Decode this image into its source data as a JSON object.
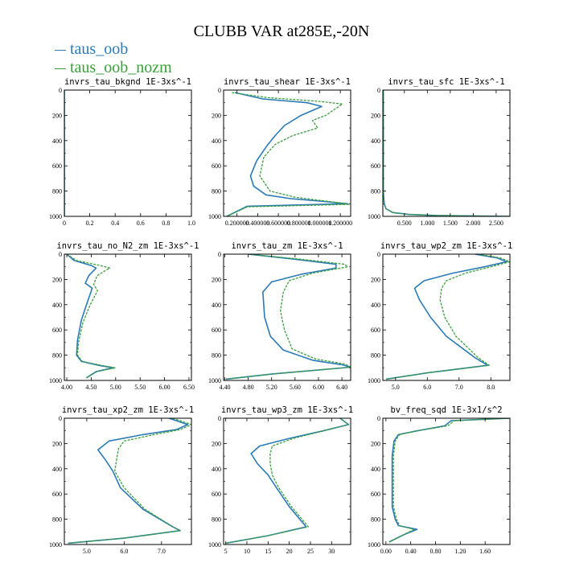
{
  "title": "CLUBB VAR at285E,-20N",
  "colors": {
    "series_1": "#2a7ab8",
    "series_2": "#3aa03a"
  },
  "legend": [
    {
      "label": "taus_oob",
      "color": "#2a7ab8"
    },
    {
      "label": "taus_oob_nozm",
      "color": "#3aa03a"
    }
  ],
  "chart_data": [
    {
      "type": "line",
      "title": "invrs_tau_bkgnd   1E-3xs^-1",
      "xlim": [
        0,
        1
      ],
      "ylim": [
        1000,
        0
      ],
      "xticks": [
        0,
        0.2,
        0.4,
        0.6,
        0.8,
        1.0
      ],
      "xtick_labels": [
        "0",
        "0.2",
        "0.4",
        "0.6",
        "0.8",
        "1.0"
      ],
      "yticks": [
        0,
        200,
        400,
        600,
        800,
        1000
      ],
      "series": [
        {
          "x": [
            0,
            0
          ],
          "y": [
            0,
            1000
          ]
        },
        {
          "x": [
            0,
            0
          ],
          "y": [
            0,
            1000
          ]
        }
      ]
    },
    {
      "type": "line",
      "title": "invrs_tau_shear   1E-3xs^-1",
      "xlim": [
        0.07,
        1.3
      ],
      "ylim": [
        1000,
        0
      ],
      "xticks": [
        0.2,
        0.4,
        0.6,
        0.8,
        1.0,
        1.2
      ],
      "xtick_labels": [
        "0.200000",
        "0.400000",
        "0.600000",
        "0.800000",
        "1.000000",
        "1.200000"
      ],
      "yticks": [
        0,
        200,
        400,
        600,
        800,
        1000
      ],
      "series": [
        {
          "x": [
            0.18,
            0.45,
            0.88,
            1.02,
            0.82,
            0.66,
            0.57,
            0.49,
            0.39,
            0.33,
            0.36,
            0.48,
            0.72,
            1.02,
            1.27,
            0.3,
            0.1
          ],
          "y": [
            20,
            70,
            100,
            130,
            200,
            280,
            360,
            440,
            560,
            680,
            760,
            830,
            860,
            880,
            900,
            920,
            1000
          ]
        },
        {
          "x": [
            0.15,
            0.5,
            1.0,
            1.22,
            1.06,
            0.93,
            0.98,
            0.74,
            0.57,
            0.46,
            0.42,
            0.52,
            0.77,
            1.07,
            1.29,
            0.3,
            0.1
          ],
          "y": [
            20,
            60,
            90,
            110,
            200,
            240,
            300,
            360,
            430,
            530,
            680,
            800,
            850,
            880,
            905,
            925,
            1000
          ]
        }
      ]
    },
    {
      "type": "line",
      "title": "invrs_tau_sfc   1E-3xs^-1",
      "xlim": [
        0.03,
        2.8
      ],
      "ylim": [
        1000,
        0
      ],
      "xticks": [
        0.5,
        1.0,
        1.5,
        2.0,
        2.5
      ],
      "xtick_labels": [
        "0.500",
        "1.000",
        "1.500",
        "2.000",
        "2.500"
      ],
      "yticks": [
        0,
        200,
        400,
        600,
        800,
        1000
      ],
      "series": [
        {
          "x": [
            0.04,
            0.04,
            0.06,
            0.1,
            0.25,
            0.6,
            1.2,
            2.0,
            2.8
          ],
          "y": [
            0,
            800,
            900,
            940,
            970,
            985,
            993,
            997,
            1000
          ]
        },
        {
          "x": [
            0.04,
            0.04,
            0.06,
            0.1,
            0.25,
            0.6,
            1.2,
            2.0,
            2.8
          ],
          "y": [
            0,
            800,
            900,
            940,
            970,
            985,
            993,
            997,
            1000
          ]
        }
      ]
    },
    {
      "type": "line",
      "title": "invrs_tau_no_N2_zm   1E-3xs^-1",
      "xlim": [
        3.95,
        6.55
      ],
      "ylim": [
        1000,
        0
      ],
      "xticks": [
        4.0,
        4.5,
        5.0,
        5.5,
        6.0,
        6.5
      ],
      "xtick_labels": [
        "4.00",
        "4.50",
        "5.00",
        "5.50",
        "6.00",
        "6.50"
      ],
      "yticks": [
        0,
        200,
        400,
        600,
        800,
        1000
      ],
      "series": [
        {
          "x": [
            4.0,
            4.15,
            4.5,
            4.6,
            4.45,
            4.38,
            4.52,
            4.42,
            4.3,
            4.22,
            4.2,
            4.3,
            4.65,
            4.95,
            4.6,
            4.4
          ],
          "y": [
            0,
            50,
            90,
            110,
            170,
            230,
            270,
            380,
            520,
            680,
            800,
            850,
            880,
            900,
            930,
            980
          ]
        },
        {
          "x": [
            4.0,
            4.2,
            4.68,
            4.88,
            4.62,
            4.55,
            4.63,
            4.48,
            4.33,
            4.24,
            4.22,
            4.32,
            4.7,
            5.0,
            4.62,
            4.4
          ],
          "y": [
            0,
            50,
            90,
            110,
            170,
            240,
            290,
            400,
            540,
            700,
            800,
            850,
            880,
            900,
            930,
            980
          ]
        }
      ]
    },
    {
      "type": "line",
      "title": "invrs_tau_zm   1E-3xs^-1",
      "xlim": [
        4.38,
        6.55
      ],
      "ylim": [
        1000,
        0
      ],
      "xticks": [
        4.4,
        4.8,
        5.2,
        5.6,
        6.0,
        6.4
      ],
      "xtick_labels": [
        "4.40",
        "4.80",
        "5.20",
        "5.60",
        "6.00",
        "6.40"
      ],
      "yticks": [
        0,
        200,
        400,
        600,
        800,
        1000
      ],
      "series": [
        {
          "x": [
            4.8,
            5.6,
            6.3,
            6.3,
            5.7,
            5.2,
            5.05,
            5.08,
            5.18,
            5.4,
            5.9,
            6.4,
            6.55,
            5.2,
            4.42
          ],
          "y": [
            0,
            40,
            80,
            110,
            160,
            220,
            300,
            500,
            650,
            760,
            840,
            875,
            895,
            950,
            990
          ]
        },
        {
          "x": [
            4.8,
            5.7,
            6.45,
            6.5,
            5.9,
            5.5,
            5.4,
            5.35,
            5.42,
            5.55,
            5.95,
            6.45,
            6.55,
            5.2,
            4.42
          ],
          "y": [
            0,
            40,
            80,
            100,
            150,
            210,
            300,
            450,
            600,
            750,
            830,
            870,
            895,
            950,
            990
          ]
        }
      ]
    },
    {
      "type": "line",
      "title": "invrs_tau_wp2_zm   1E-3xs^-1",
      "xlim": [
        4.6,
        8.6
      ],
      "ylim": [
        1000,
        0
      ],
      "xticks": [
        5.0,
        6.0,
        7.0,
        8.0
      ],
      "xtick_labels": [
        "5.0",
        "6.0",
        "7.0",
        "8.0"
      ],
      "yticks": [
        0,
        200,
        400,
        600,
        800,
        1000
      ],
      "series": [
        {
          "x": [
            7.5,
            8.2,
            8.5,
            7.8,
            6.8,
            5.9,
            5.6,
            5.75,
            6.1,
            6.6,
            7.5,
            7.9,
            6.0,
            4.7
          ],
          "y": [
            0,
            30,
            60,
            100,
            150,
            210,
            270,
            360,
            500,
            650,
            820,
            880,
            940,
            990
          ]
        },
        {
          "x": [
            7.6,
            8.3,
            8.6,
            8.0,
            7.2,
            6.6,
            6.45,
            6.4,
            6.55,
            6.9,
            7.6,
            7.95,
            6.0,
            4.7
          ],
          "y": [
            0,
            30,
            60,
            100,
            150,
            210,
            270,
            360,
            500,
            650,
            820,
            880,
            940,
            990
          ]
        }
      ]
    },
    {
      "type": "line",
      "title": "invrs_tau_xp2_zm   1E-3xs^-1",
      "xlim": [
        4.4,
        7.8
      ],
      "ylim": [
        1000,
        0
      ],
      "xticks": [
        5.0,
        6.0,
        7.0
      ],
      "xtick_labels": [
        "5.0",
        "6.0",
        "7.0"
      ],
      "yticks": [
        0,
        200,
        400,
        600,
        800,
        1000
      ],
      "series": [
        {
          "x": [
            7.2,
            7.7,
            7.4,
            6.5,
            5.6,
            5.3,
            5.5,
            5.7,
            5.9,
            6.5,
            7.3,
            7.5,
            6.0,
            4.5
          ],
          "y": [
            0,
            50,
            90,
            130,
            180,
            250,
            330,
            420,
            550,
            720,
            860,
            890,
            950,
            990
          ]
        },
        {
          "x": [
            7.3,
            7.8,
            7.5,
            6.8,
            6.0,
            5.85,
            5.8,
            5.75,
            6.0,
            6.55,
            7.3,
            7.5,
            6.0,
            4.5
          ],
          "y": [
            0,
            50,
            90,
            130,
            180,
            240,
            320,
            420,
            550,
            720,
            860,
            890,
            950,
            990
          ]
        }
      ]
    },
    {
      "type": "line",
      "title": "invrs_tau_wp3_zm   1E-3xs^-1",
      "xlim": [
        4.5,
        34.5
      ],
      "ylim": [
        1000,
        0
      ],
      "xticks": [
        5,
        10,
        15,
        20,
        25,
        30
      ],
      "xtick_labels": [
        "5",
        "10",
        "15",
        "20",
        "25",
        "30"
      ],
      "yticks": [
        0,
        200,
        400,
        600,
        800,
        1000
      ],
      "series": [
        {
          "x": [
            32,
            34,
            28,
            20,
            13,
            11,
            12.5,
            15,
            17,
            20,
            23,
            24,
            15,
            5
          ],
          "y": [
            0,
            50,
            100,
            160,
            220,
            280,
            360,
            450,
            550,
            700,
            820,
            860,
            930,
            990
          ]
        },
        {
          "x": [
            32,
            34,
            28,
            21,
            16,
            15.5,
            15.5,
            16,
            17.5,
            20.5,
            23.5,
            24.5,
            15,
            5
          ],
          "y": [
            0,
            50,
            100,
            160,
            220,
            280,
            360,
            450,
            550,
            700,
            820,
            860,
            930,
            990
          ]
        }
      ]
    },
    {
      "type": "line",
      "title": "bv_freq_sqd   1E-3x1/s^2",
      "xlim": [
        -0.05,
        2.0
      ],
      "ylim": [
        1000,
        0
      ],
      "xticks": [
        0.0,
        0.4,
        0.8,
        1.2,
        1.6
      ],
      "xtick_labels": [
        "0.00",
        "0.40",
        "0.80",
        "1.20",
        "1.60"
      ],
      "yticks": [
        0,
        200,
        400,
        600,
        800,
        1000
      ],
      "series": [
        {
          "x": [
            2.0,
            1.05,
            0.95,
            0.5,
            0.2,
            0.13,
            0.1,
            0.1,
            0.1,
            0.15,
            0.2,
            0.5,
            0.3,
            0.05
          ],
          "y": [
            0,
            20,
            60,
            100,
            130,
            180,
            300,
            500,
            700,
            800,
            850,
            880,
            920,
            980
          ]
        },
        {
          "x": [
            2.0,
            1.1,
            1.0,
            0.5,
            0.22,
            0.15,
            0.12,
            0.12,
            0.12,
            0.17,
            0.22,
            0.45,
            0.3,
            0.05
          ],
          "y": [
            0,
            20,
            60,
            100,
            130,
            180,
            300,
            500,
            700,
            800,
            850,
            880,
            920,
            980
          ]
        }
      ]
    }
  ]
}
